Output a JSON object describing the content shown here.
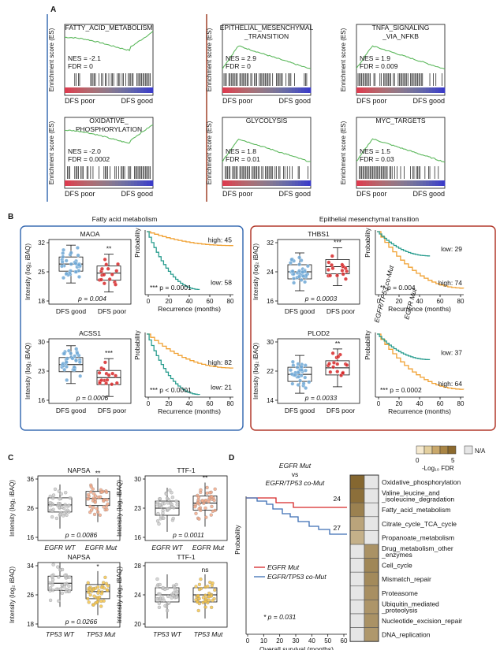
{
  "panelA": {
    "letter": "A",
    "ylabel": "Enrichment score (ES)",
    "xleft": "DFS poor",
    "xright": "DFS good",
    "plots": [
      {
        "title1": "FATTY_ACID_METABOLISM",
        "title2": "",
        "nes": "NES = -2.1",
        "fdr": "FDR = 0",
        "shape": "neg"
      },
      {
        "title1": "EPITHELIAL_MESENCHYMAL",
        "title2": "_TRANSITION",
        "nes": "NES = 2.9",
        "fdr": "FDR = 0",
        "shape": "pos"
      },
      {
        "title1": "TNFA_SIGNALING",
        "title2": "_VIA_NFKB",
        "nes": "NES = 1.9",
        "fdr": "FDR = 0.009",
        "shape": "pos"
      },
      {
        "title1": "OXIDATIVE_",
        "title2": "PHOSPHORYLATION",
        "nes": "NES = -2.0",
        "fdr": "FDR = 0.0002",
        "shape": "neg"
      },
      {
        "title1": "GLYCOLYSIS",
        "title2": "",
        "nes": "NES = 1.8",
        "fdr": "FDR = 0.01",
        "shape": "pos"
      },
      {
        "title1": "MYC_TARGETS",
        "title2": "",
        "nes": "NES = 1.5",
        "fdr": "FDR = 0.03",
        "shape": "pos"
      }
    ]
  },
  "panelB": {
    "letter": "B",
    "left_title": "Fatty acid metabolism",
    "right_title": "Epithelial mesenchymal transition",
    "box_ylabel": "Intensity (log₂ iBAQ)",
    "km_ylabel": "Probability",
    "km_xlabel": "Recurrence (months)",
    "group_good": "DFS good",
    "group_poor": "DFS poor",
    "km_xticks": [
      "0",
      "20",
      "40",
      "60",
      "80"
    ],
    "boxes": [
      {
        "title": "MAOA",
        "yticks": [
          "32",
          "25",
          "18"
        ],
        "sig": "**",
        "p": "p = 0.004"
      },
      {
        "title": "THBS1",
        "yticks": [
          "32",
          "24",
          "16"
        ],
        "sig": "***",
        "p": "p = 0.0003"
      },
      {
        "title": "ACSS1",
        "yticks": [
          "30",
          "23",
          "16"
        ],
        "sig": "***",
        "p": "p = 0.0006"
      },
      {
        "title": "PLOD2",
        "yticks": [
          "30",
          "22",
          "14"
        ],
        "sig": "**",
        "p": "p = 0.0033"
      }
    ],
    "km": [
      {
        "high": "high: 45",
        "low": "low: 58",
        "p": "*** p = 0.0001"
      },
      {
        "high": "high: 74",
        "low": "low: 29",
        "p": "** p = 0.004"
      },
      {
        "high": "high: 82",
        "low": "low: 21",
        "p": "*** p < 0.0001"
      },
      {
        "high": "high: 64",
        "low": "low: 37",
        "p": "*** p = 0.0002"
      }
    ]
  },
  "panelC": {
    "letter": "C",
    "ylabel": "Intensity (log₂ iBAQ)",
    "boxes": [
      {
        "title": "NAPSA",
        "yticks": [
          "36",
          "26",
          "16"
        ],
        "g1": "EGFR WT",
        "g2": "EGFR Mut",
        "sig": "**",
        "p": "p = 0.0086"
      },
      {
        "title": "TTF-1",
        "yticks": [
          "30",
          "23",
          "16"
        ],
        "g1": "EGFR WT",
        "g2": "EGFR Mut",
        "sig": "**",
        "p": "p = 0.0011"
      },
      {
        "title": "NAPSA",
        "yticks": [
          "34",
          "26",
          "18"
        ],
        "g1": "TP53 WT",
        "g2": "TP53 Mut",
        "sig": "*",
        "p": "p = 0.0266"
      },
      {
        "title": "TTF-1",
        "yticks": [
          "28",
          "24",
          "20"
        ],
        "g1": "TP53 WT",
        "g2": "TP53 Mut",
        "sig": "ns",
        "p": ""
      }
    ]
  },
  "panelD": {
    "letter": "D",
    "title1": "EGFR Mut",
    "title2": "vs",
    "title3": "EGFR/TP53 co-Mut",
    "ylabel": "Probability",
    "xlabel": "Overall survival (months)",
    "xticks": [
      "0",
      "10",
      "20",
      "30",
      "40",
      "50",
      "60"
    ],
    "n_top": "24",
    "n_bottom": "27",
    "p": "* p = 0.031",
    "legend1": "EGFR Mut",
    "legend2": "EGFR/TP53 co-Mut"
  },
  "heatmap": {
    "col1": "EGFR Mut",
    "col2": "EGFR/TP53 co-Mut",
    "scale_min": "0",
    "scale_max": "5",
    "scale_label": "-Log₁₀ FDR",
    "na_label": "N/A",
    "rows": [
      {
        "label": "Oxidative_phosphorylation",
        "v1": 4.5,
        "v2": -1
      },
      {
        "label": "Valine_leucine_and _isoleucine_degradation",
        "v1": 4.2,
        "v2": -1
      },
      {
        "label": "Fatty_acid_metabolism",
        "v1": 3.6,
        "v2": -1
      },
      {
        "label": "Citrate_cycle_TCA_cycle",
        "v1": 2.4,
        "v2": -1
      },
      {
        "label": "Propanoate_metabolism",
        "v1": 2.0,
        "v2": -1
      },
      {
        "label": "Drug_metabolism_other _enzymes",
        "v1": -1,
        "v2": 3.0
      },
      {
        "label": "Cell_cycle",
        "v1": -1,
        "v2": 3.4
      },
      {
        "label": "Mismatch_repair",
        "v1": -1,
        "v2": 3.3
      },
      {
        "label": "Proteasome",
        "v1": -1,
        "v2": 3.1
      },
      {
        "label": "Ubiquitin_mediated _proteolysis",
        "v1": -1,
        "v2": 2.9
      },
      {
        "label": "Nucleotide_excision_repair",
        "v1": -1,
        "v2": 3.0
      },
      {
        "label": "DNA_replication",
        "v1": -1,
        "v2": 2.8
      }
    ]
  }
}
